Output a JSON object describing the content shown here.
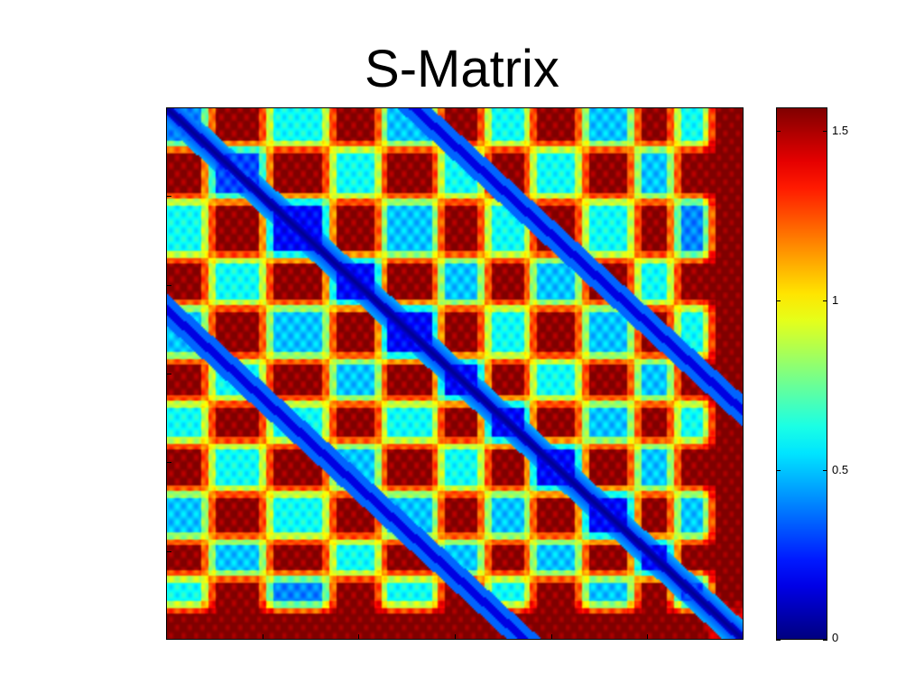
{
  "title": "S-Matrix",
  "chart_data": {
    "type": "heatmap",
    "title": "S-Matrix",
    "colormap": "jet",
    "clim": [
      0,
      1.57
    ],
    "colorbar": {
      "ticks": [
        {
          "value": 0,
          "label": "0"
        },
        {
          "value": 0.5,
          "label": "0.5"
        },
        {
          "value": 1,
          "label": "1"
        },
        {
          "value": 1.5,
          "label": "1.5"
        }
      ]
    },
    "symmetric": true,
    "diagonal_value": 0,
    "description_values": {
      "block_boundaries": [
        0,
        0.07,
        0.17,
        0.28,
        0.37,
        0.47,
        0.55,
        0.63,
        0.72,
        0.81,
        0.88,
        0.94,
        1.0
      ],
      "block_pattern": [
        [
          0.4,
          1.55,
          0.6,
          1.55,
          0.5,
          1.55,
          0.6,
          1.55,
          0.5,
          1.55,
          0.6,
          1.57
        ],
        [
          1.55,
          0.3,
          1.55,
          0.6,
          1.55,
          0.6,
          1.55,
          0.6,
          1.55,
          0.5,
          1.55,
          1.57
        ],
        [
          0.6,
          1.55,
          0.2,
          1.55,
          0.5,
          1.55,
          0.6,
          1.55,
          0.6,
          1.55,
          0.4,
          1.57
        ],
        [
          1.55,
          0.6,
          1.55,
          0.2,
          1.55,
          0.5,
          1.55,
          0.5,
          1.55,
          0.6,
          1.55,
          1.57
        ],
        [
          0.5,
          1.55,
          0.5,
          1.55,
          0.2,
          1.55,
          0.6,
          1.55,
          0.5,
          1.55,
          0.6,
          1.57
        ],
        [
          1.55,
          0.6,
          1.55,
          0.5,
          1.55,
          0.2,
          1.55,
          0.6,
          1.55,
          0.5,
          1.55,
          1.57
        ],
        [
          0.6,
          1.55,
          0.6,
          1.55,
          0.6,
          1.55,
          0.2,
          1.55,
          0.5,
          1.55,
          0.6,
          1.57
        ],
        [
          1.55,
          0.6,
          1.55,
          0.5,
          1.55,
          0.6,
          1.55,
          0.2,
          1.55,
          0.5,
          1.55,
          1.57
        ],
        [
          0.5,
          1.55,
          0.6,
          1.55,
          0.5,
          1.55,
          0.5,
          1.55,
          0.2,
          1.55,
          0.5,
          1.57
        ],
        [
          1.55,
          0.5,
          1.55,
          0.6,
          1.55,
          0.5,
          1.55,
          0.5,
          1.55,
          0.2,
          1.55,
          1.57
        ],
        [
          0.6,
          1.55,
          0.4,
          1.55,
          0.6,
          1.55,
          0.6,
          1.55,
          0.5,
          1.55,
          0.3,
          1.57
        ],
        [
          1.57,
          1.57,
          1.57,
          1.57,
          1.57,
          1.57,
          1.57,
          1.57,
          1.57,
          1.57,
          1.57,
          1.4
        ]
      ]
    }
  }
}
